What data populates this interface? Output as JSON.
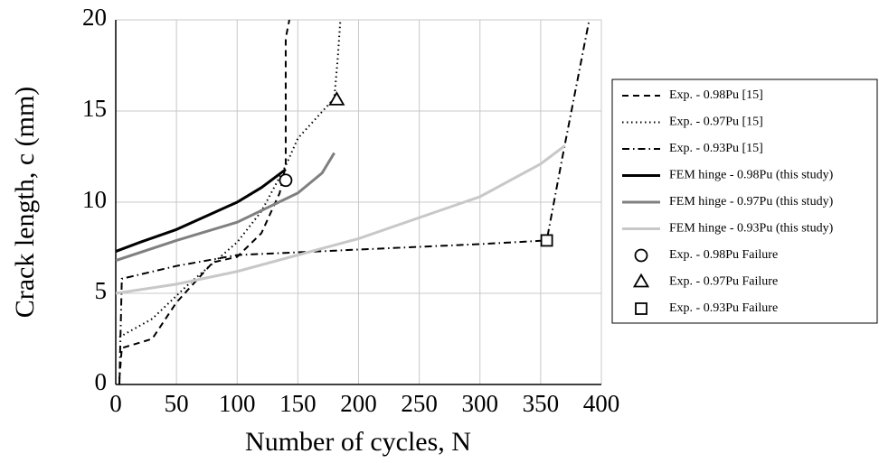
{
  "chart_data": {
    "type": "line",
    "xlabel": "Number of cycles, N",
    "ylabel": "Crack length, c (mm)",
    "xlim": [
      0,
      400
    ],
    "ylim": [
      0,
      20
    ],
    "xticks": [
      0,
      50,
      100,
      150,
      200,
      250,
      300,
      350,
      400
    ],
    "yticks": [
      0,
      5,
      10,
      15,
      20
    ],
    "grid": true,
    "legend": "outside right",
    "series": [
      {
        "name": "Exp. - 0.98Pu [15]",
        "color": "#000000",
        "style": "dashed",
        "width": 2,
        "x": [
          3,
          5,
          30,
          50,
          80,
          100,
          120,
          135,
          140,
          140,
          143
        ],
        "values": [
          0.3,
          2,
          2.5,
          4.5,
          6.7,
          7,
          8.3,
          10.5,
          12,
          19,
          20
        ]
      },
      {
        "name": "Exp. - 0.97Pu [15]",
        "color": "#000000",
        "style": "dotted",
        "width": 2,
        "x": [
          3,
          30,
          60,
          100,
          120,
          140,
          150,
          180,
          183,
          185
        ],
        "values": [
          2.6,
          3.6,
          5.5,
          7.8,
          9.5,
          12,
          13.5,
          15.7,
          18,
          20
        ]
      },
      {
        "name": "Exp. - 0.93Pu [15]",
        "color": "#000000",
        "style": "dashdot",
        "width": 2,
        "x": [
          3,
          5,
          50,
          100,
          200,
          300,
          355,
          368,
          390
        ],
        "values": [
          0,
          5.8,
          6.5,
          7.1,
          7.4,
          7.7,
          7.9,
          12.5,
          20
        ]
      },
      {
        "name": "FEM hinge - 0.98Pu (this study)",
        "color": "#000000",
        "style": "solid",
        "width": 3,
        "x": [
          0,
          20,
          50,
          80,
          100,
          120,
          140
        ],
        "values": [
          7.3,
          7.8,
          8.5,
          9.4,
          10,
          10.8,
          11.8
        ]
      },
      {
        "name": "FEM hinge - 0.97Pu (this study)",
        "color": "#808080",
        "style": "solid",
        "width": 3,
        "x": [
          0,
          50,
          100,
          150,
          170,
          180
        ],
        "values": [
          6.8,
          7.9,
          8.9,
          10.5,
          11.6,
          12.7
        ]
      },
      {
        "name": "FEM hinge - 0.93Pu (this study)",
        "color": "#c8c8c8",
        "style": "solid",
        "width": 3,
        "x": [
          0,
          50,
          100,
          200,
          300,
          350,
          370
        ],
        "values": [
          5,
          5.5,
          6.2,
          8,
          10.3,
          12.1,
          13.1
        ]
      },
      {
        "name": "Exp. - 0.98Pu Failure",
        "color": "#000000",
        "marker": "circle",
        "x": [
          140
        ],
        "values": [
          11.2
        ]
      },
      {
        "name": "Exp. - 0.97Pu Failure",
        "color": "#000000",
        "marker": "triangle",
        "x": [
          182
        ],
        "values": [
          15.6
        ]
      },
      {
        "name": "Exp. - 0.93Pu Failure",
        "color": "#000000",
        "marker": "square",
        "x": [
          355
        ],
        "values": [
          7.9
        ]
      }
    ]
  }
}
